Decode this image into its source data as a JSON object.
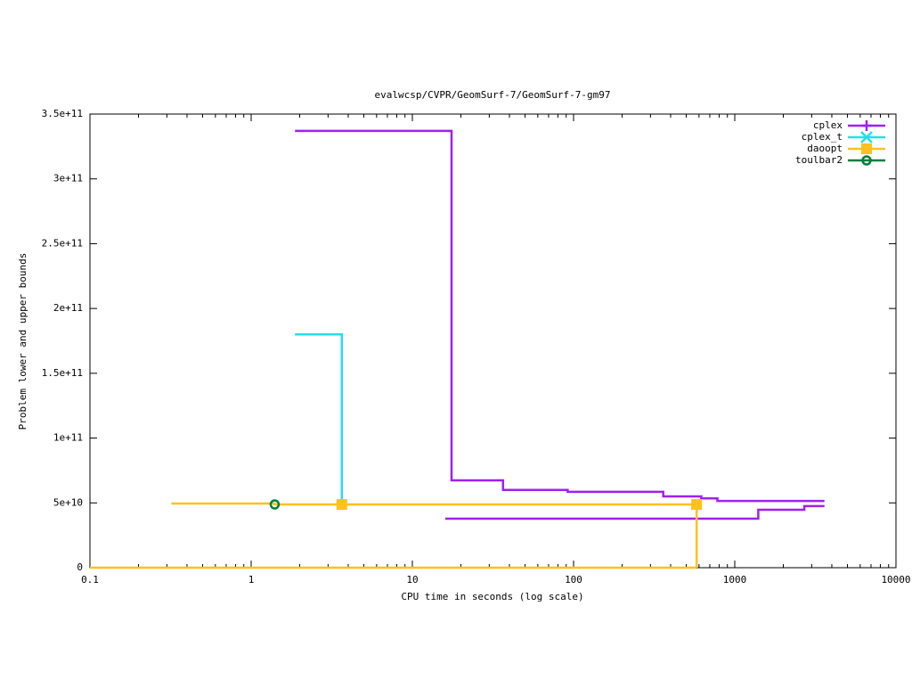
{
  "chart_data": {
    "type": "line",
    "title": "evalwcsp/CVPR/GeomSurf-7/GeomSurf-7-gm97",
    "xlabel": "CPU time in seconds (log scale)",
    "ylabel": "Problem lower and upper bounds",
    "xlog": true,
    "xlim": [
      0.1,
      10000
    ],
    "xticks": [
      0.1,
      1,
      10,
      100,
      1000,
      10000
    ],
    "ylim": [
      0,
      350000000000
    ],
    "yticks": [
      {
        "value": 0,
        "label": "0"
      },
      {
        "value": 50000000000,
        "label": "5e+10"
      },
      {
        "value": 100000000000,
        "label": "1e+11"
      },
      {
        "value": 150000000000,
        "label": "1.5e+11"
      },
      {
        "value": 200000000000,
        "label": "2e+11"
      },
      {
        "value": 250000000000,
        "label": "2.5e+11"
      },
      {
        "value": 300000000000,
        "label": "3e+11"
      },
      {
        "value": 350000000000,
        "label": "3.5e+11"
      }
    ],
    "legend": "top-right",
    "series": [
      {
        "name": "cplex",
        "color": "#a020f0",
        "marker": "plus",
        "x": [
          1.87,
          17.5,
          17.5,
          36.5,
          36.5,
          92,
          92,
          360,
          360,
          620,
          620,
          780,
          780,
          3600,
          null,
          16,
          1400,
          1400,
          2700,
          2700,
          3600
        ],
        "values": [
          337000000000,
          337000000000,
          67400000000,
          67400000000,
          60000000000,
          60000000000,
          58500000000,
          58500000000,
          55000000000,
          55000000000,
          53500000000,
          53500000000,
          51500000000,
          51500000000,
          null,
          37800000000,
          37800000000,
          44700000000,
          44700000000,
          47500000000,
          47500000000
        ],
        "marker_x": [],
        "marker_values": []
      },
      {
        "name": "cplex_t",
        "color": "#20e0e8",
        "marker": "cross",
        "x": [
          1.87,
          3.65,
          3.65
        ],
        "values": [
          180000000000,
          180000000000,
          48800000000
        ],
        "marker_x": [],
        "marker_values": []
      },
      {
        "name": "daoopt",
        "color": "#ffc020",
        "marker": "square",
        "x": [
          0.32,
          1.4,
          1.4,
          580,
          580,
          null,
          0.1,
          580
        ],
        "values": [
          49500000000,
          49500000000,
          48800000000,
          48800000000,
          0,
          null,
          0,
          0
        ],
        "marker_x": [
          3.65,
          580
        ],
        "marker_values": [
          48800000000,
          48800000000
        ]
      },
      {
        "name": "toulbar2",
        "color": "#008040",
        "marker": "circle",
        "x": [],
        "values": [],
        "marker_x": [
          1.4
        ],
        "marker_values": [
          48800000000
        ]
      }
    ]
  }
}
